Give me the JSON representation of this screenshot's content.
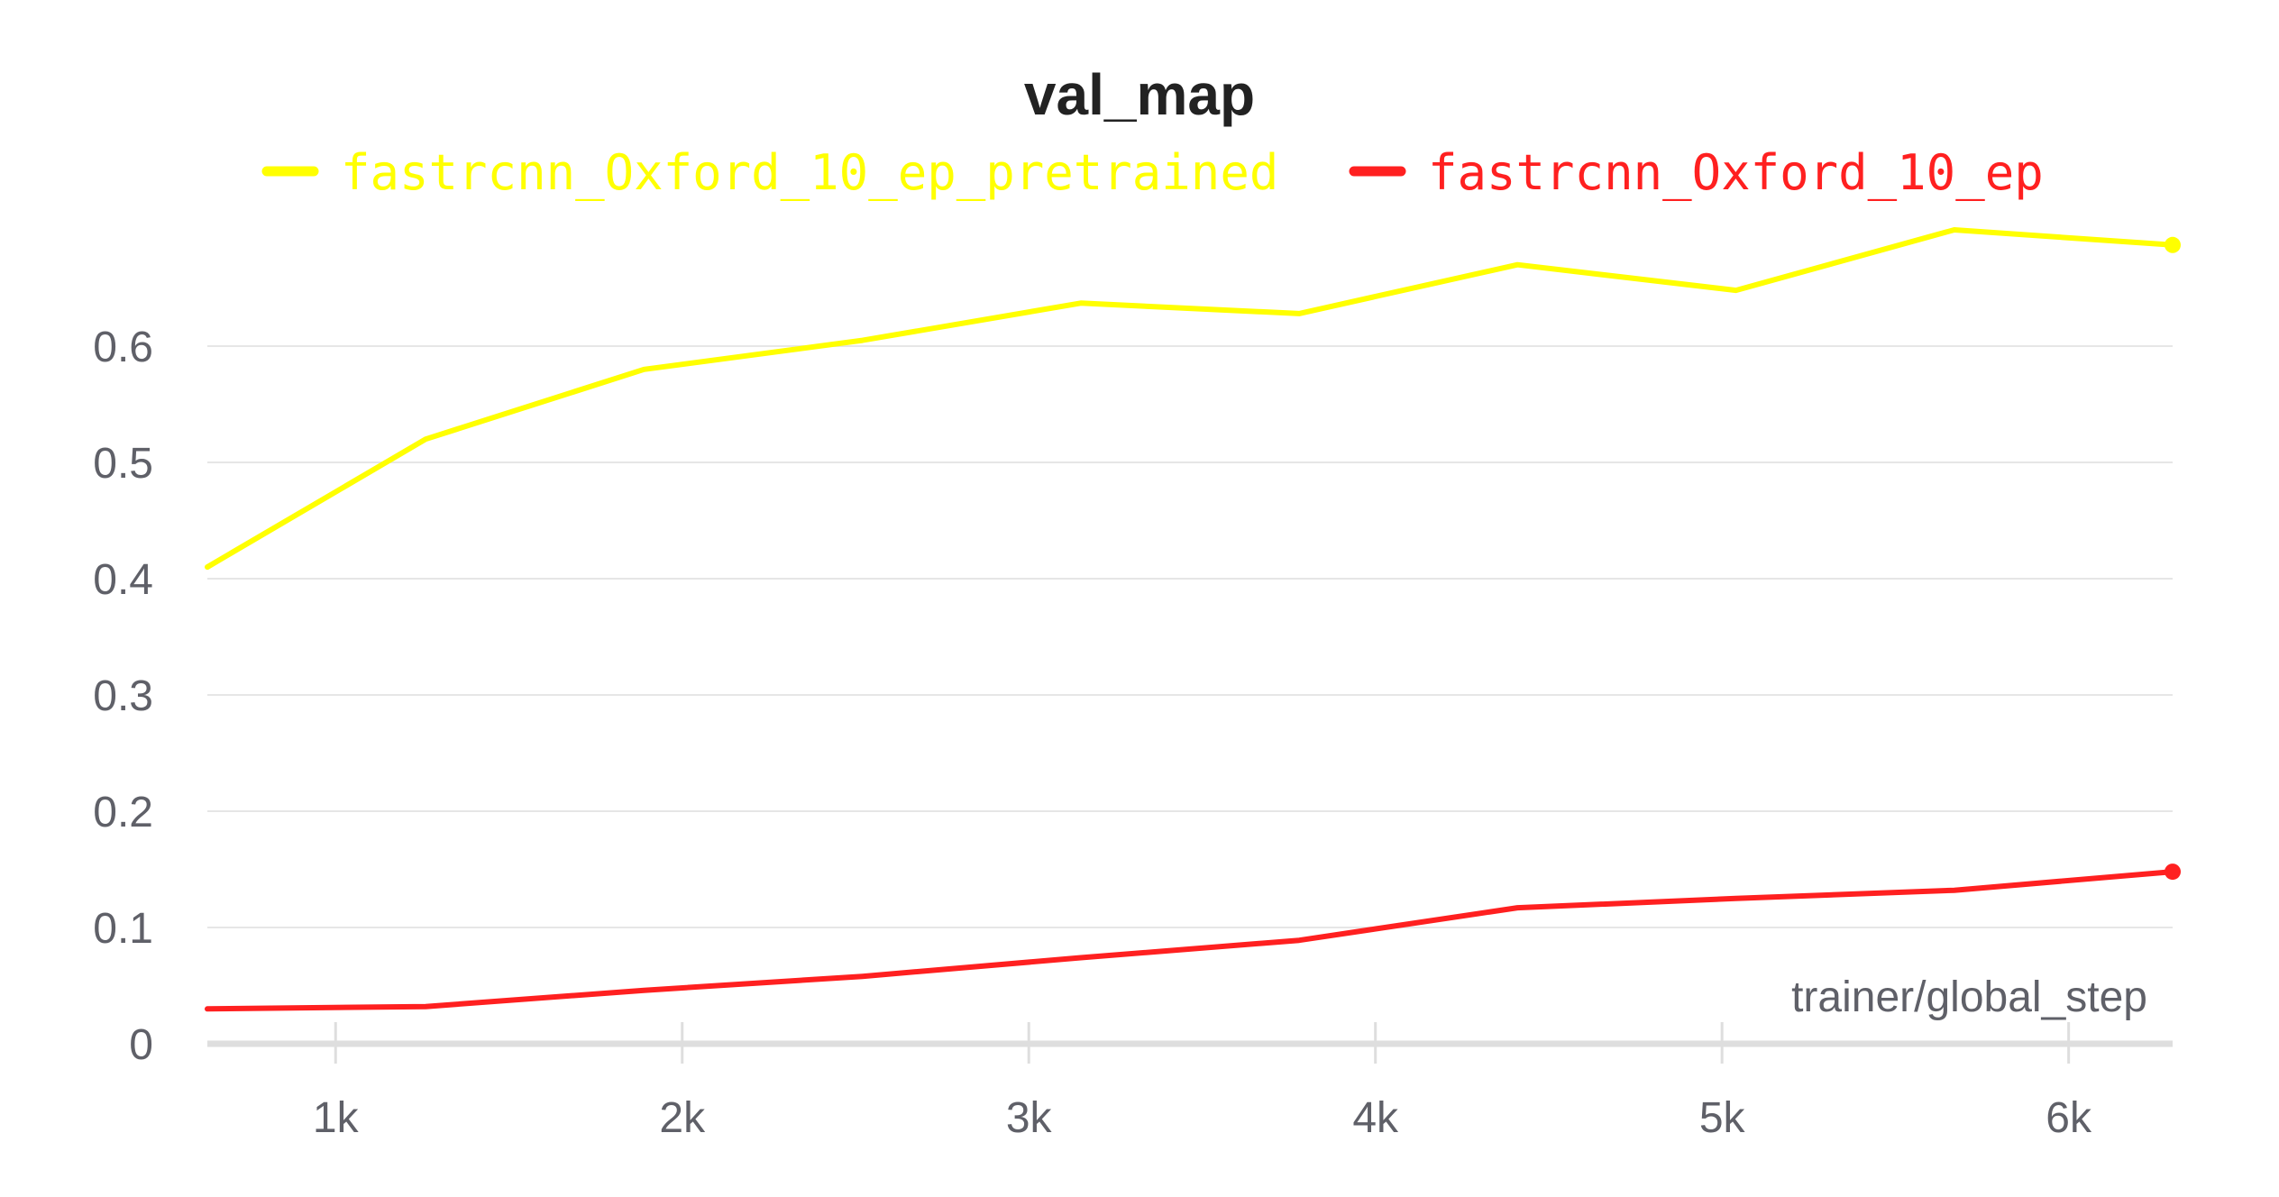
{
  "chart_data": {
    "type": "line",
    "title": "val_map",
    "xlabel": "trainer/global_step",
    "ylabel": "",
    "xlim": [
      630,
      6300
    ],
    "ylim": [
      0,
      0.72
    ],
    "grid": true,
    "legend_position": "top",
    "x_ticks": [
      {
        "value": 1000,
        "label": "1k"
      },
      {
        "value": 2000,
        "label": "2k"
      },
      {
        "value": 3000,
        "label": "3k"
      },
      {
        "value": 4000,
        "label": "4k"
      },
      {
        "value": 5000,
        "label": "5k"
      },
      {
        "value": 6000,
        "label": "6k"
      }
    ],
    "y_ticks": [
      {
        "value": 0,
        "label": "0"
      },
      {
        "value": 0.1,
        "label": "0.1"
      },
      {
        "value": 0.2,
        "label": "0.2"
      },
      {
        "value": 0.3,
        "label": "0.3"
      },
      {
        "value": 0.4,
        "label": "0.4"
      },
      {
        "value": 0.5,
        "label": "0.5"
      },
      {
        "value": 0.6,
        "label": "0.6"
      }
    ],
    "series": [
      {
        "name": "fastrcnn_Oxford_10_ep_pretrained",
        "color": "#ffff00",
        "x": [
          630,
          1260,
          1890,
          2520,
          3150,
          3780,
          4410,
          5040,
          5670,
          6300
        ],
        "y": [
          0.41,
          0.52,
          0.58,
          0.605,
          0.637,
          0.628,
          0.67,
          0.648,
          0.7,
          0.687
        ]
      },
      {
        "name": "fastrcnn_Oxford_10_ep",
        "color": "#ff2020",
        "x": [
          630,
          1260,
          1890,
          2520,
          3150,
          3780,
          4410,
          5040,
          5670,
          6300
        ],
        "y": [
          0.03,
          0.032,
          0.046,
          0.058,
          0.074,
          0.089,
          0.117,
          0.125,
          0.132,
          0.148
        ]
      }
    ]
  }
}
